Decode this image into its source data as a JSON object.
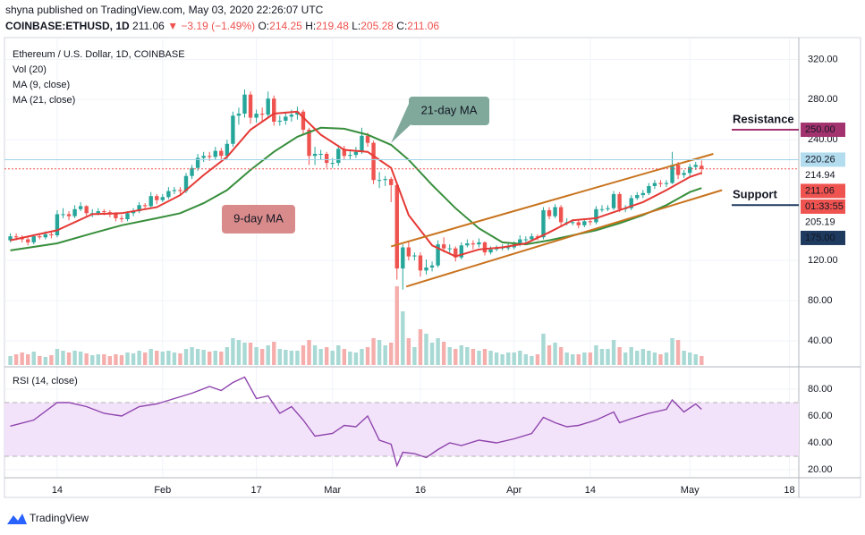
{
  "header": {
    "published": "shyna published on TradingView.com, May 03, 2020 22:26:07 UTC",
    "symbol": "COINBASE:ETHUSD, 1D",
    "last": "211.06",
    "change": "▼ −3.19 (−1.49%)",
    "ohlc": [
      {
        "key": "O:",
        "value": "214.25"
      },
      {
        "key": "H:",
        "value": "219.48"
      },
      {
        "key": "L:",
        "value": "205.28"
      },
      {
        "key": "C:",
        "value": "211.06"
      }
    ]
  },
  "footer": "TradingView",
  "chart_data": {
    "type": "candlestick",
    "legend": [
      "Ethereum / U.S. Dollar, 1D, COINBASE",
      "Vol (20)",
      "MA (9, close)",
      "MA (21, close)"
    ],
    "xlim": [
      -1,
      134.6
    ],
    "xticks": [
      {
        "value": 8,
        "label": "14"
      },
      {
        "value": 26,
        "label": "Feb"
      },
      {
        "value": 42,
        "label": "17"
      },
      {
        "value": 55,
        "label": "Mar"
      },
      {
        "value": 70,
        "label": "16"
      },
      {
        "value": 86,
        "label": "Apr"
      },
      {
        "value": 99,
        "label": "14"
      },
      {
        "value": 116,
        "label": "May"
      },
      {
        "value": 133,
        "label": "18"
      }
    ],
    "ylim": [
      16,
      339
    ],
    "yticks": [
      {
        "value": 40,
        "label": "40.00"
      },
      {
        "value": 80,
        "label": "80.00"
      },
      {
        "value": 120,
        "label": "120.00"
      },
      {
        "value": 240,
        "label": "240.00"
      },
      {
        "value": 280,
        "label": "280.00"
      },
      {
        "value": 320,
        "label": "320.00"
      }
    ],
    "colors": {
      "up": "#26a69a",
      "down": "#ef5350",
      "vol_up": "#a8d9d4",
      "vol_down": "#f5aeac"
    },
    "candles": {
      "open": [
        140,
        144,
        143,
        141,
        138,
        144,
        143,
        146,
        145,
        166,
        166,
        164,
        171,
        174,
        167,
        167,
        169,
        168,
        166,
        162,
        161,
        167,
        169,
        175,
        174,
        184,
        180,
        183,
        189,
        190,
        189,
        204,
        212,
        222,
        224,
        223,
        229,
        224,
        236,
        264,
        266,
        285,
        262,
        266,
        265,
        281,
        258,
        259,
        263,
        265,
        268,
        250,
        224,
        226,
        226,
        217,
        217,
        231,
        224,
        225,
        228,
        244,
        237,
        200,
        200,
        201,
        195,
        112,
        133,
        124,
        125,
        110,
        113,
        115,
        136,
        132,
        132,
        123,
        135,
        137,
        136,
        138,
        128,
        131,
        132,
        133,
        133,
        136,
        141,
        141,
        144,
        143,
        170,
        164,
        173,
        158,
        158,
        158,
        155,
        159,
        158,
        171,
        171,
        172,
        186,
        171,
        172,
        182,
        185,
        187,
        194,
        197,
        196,
        197,
        215,
        205,
        207,
        213,
        214.25
      ],
      "high": [
        147,
        147,
        145,
        143,
        146,
        147,
        149,
        148,
        170,
        172,
        169,
        175,
        178,
        175,
        171,
        172,
        171,
        170,
        168,
        165,
        169,
        172,
        178,
        177,
        188,
        186,
        186,
        193,
        193,
        193,
        207,
        215,
        226,
        228,
        228,
        233,
        232,
        240,
        268,
        272,
        290,
        288,
        270,
        272,
        288,
        284,
        264,
        268,
        270,
        273,
        270,
        252,
        233,
        230,
        228,
        222,
        235,
        234,
        229,
        233,
        252,
        247,
        239,
        208,
        204,
        203,
        196,
        136,
        139,
        128,
        128,
        121,
        119,
        140,
        143,
        136,
        134,
        138,
        141,
        140,
        142,
        139,
        134,
        135,
        136,
        137,
        139,
        145,
        144,
        147,
        146,
        173,
        173,
        176,
        175,
        162,
        161,
        160,
        162,
        161,
        174,
        175,
        175,
        189,
        188,
        175,
        185,
        188,
        190,
        197,
        200,
        200,
        200,
        228,
        218,
        210,
        216,
        218,
        219.48
      ],
      "low": [
        138,
        140,
        138,
        135,
        136,
        141,
        141,
        142,
        143,
        162,
        160,
        162,
        169,
        164,
        163,
        165,
        165,
        163,
        159,
        158,
        159,
        164,
        167,
        171,
        172,
        176,
        178,
        181,
        186,
        185,
        187,
        201,
        209,
        218,
        219,
        220,
        220,
        221,
        233,
        255,
        262,
        256,
        257,
        258,
        262,
        254,
        254,
        255,
        258,
        260,
        246,
        215,
        215,
        220,
        212,
        212,
        214,
        220,
        220,
        222,
        226,
        233,
        196,
        192,
        194,
        178,
        101,
        91,
        120,
        120,
        104,
        106,
        109,
        113,
        128,
        127,
        119,
        121,
        133,
        131,
        133,
        125,
        126,
        129,
        130,
        130,
        131,
        134,
        138,
        139,
        140,
        141,
        161,
        162,
        155,
        155,
        155,
        152,
        153,
        155,
        156,
        168,
        169,
        170,
        168,
        168,
        170,
        180,
        182,
        185,
        191,
        193,
        193,
        196,
        201,
        202,
        204,
        210,
        205.28
      ],
      "close": [
        144,
        143,
        141,
        138,
        144,
        143,
        146,
        145,
        166,
        166,
        164,
        171,
        174,
        167,
        167,
        169,
        168,
        166,
        162,
        161,
        167,
        169,
        175,
        174,
        184,
        180,
        183,
        189,
        190,
        189,
        204,
        212,
        222,
        224,
        223,
        229,
        224,
        236,
        264,
        266,
        285,
        262,
        266,
        265,
        281,
        258,
        259,
        263,
        265,
        268,
        250,
        224,
        226,
        226,
        217,
        217,
        231,
        224,
        225,
        228,
        244,
        237,
        200,
        200,
        201,
        195,
        112,
        133,
        124,
        125,
        110,
        113,
        115,
        136,
        132,
        132,
        123,
        135,
        137,
        136,
        138,
        128,
        131,
        132,
        133,
        133,
        136,
        141,
        141,
        144,
        143,
        170,
        164,
        173,
        158,
        158,
        158,
        155,
        159,
        158,
        171,
        171,
        172,
        186,
        171,
        172,
        182,
        185,
        187,
        194,
        197,
        196,
        197,
        215,
        205,
        207,
        213,
        215,
        211.06
      ]
    },
    "volume": {
      "vlim": [
        0,
        100
      ],
      "values": [
        10,
        12,
        14,
        12,
        15,
        10,
        9,
        11,
        18,
        16,
        14,
        16,
        15,
        13,
        11,
        12,
        12,
        10,
        12,
        11,
        14,
        13,
        16,
        14,
        18,
        16,
        15,
        16,
        14,
        13,
        18,
        20,
        18,
        17,
        15,
        16,
        15,
        20,
        30,
        28,
        25,
        25,
        20,
        18,
        22,
        26,
        18,
        17,
        16,
        16,
        22,
        28,
        22,
        18,
        20,
        16,
        22,
        18,
        15,
        14,
        18,
        20,
        30,
        28,
        22,
        25,
        88,
        60,
        30,
        20,
        40,
        35,
        25,
        30,
        26,
        20,
        18,
        22,
        20,
        18,
        16,
        18,
        16,
        14,
        12,
        14,
        14,
        16,
        12,
        10,
        12,
        35,
        22,
        25,
        20,
        14,
        12,
        12,
        14,
        14,
        22,
        18,
        18,
        28,
        20,
        14,
        20,
        16,
        18,
        16,
        14,
        12,
        14,
        30,
        28,
        16,
        14,
        12,
        10
      ]
    },
    "ma9": {
      "color": "#e53935",
      "x": [
        0,
        8,
        14,
        19,
        25,
        29,
        33,
        37,
        41,
        45,
        49,
        53,
        57,
        61,
        65,
        68,
        72,
        76,
        80,
        84,
        88,
        92,
        96,
        100,
        104,
        108,
        112,
        116,
        118
      ],
      "values": [
        140,
        150,
        166,
        167,
        173,
        185,
        205,
        223,
        250,
        266,
        268,
        245,
        230,
        228,
        212,
        165,
        135,
        124,
        131,
        133,
        137,
        148,
        160,
        162,
        170,
        178,
        190,
        203,
        207
      ]
    },
    "ma21": {
      "color": "#388e3c",
      "x": [
        0,
        8,
        14,
        19,
        25,
        29,
        33,
        37,
        41,
        45,
        49,
        53,
        57,
        61,
        65,
        68,
        72,
        76,
        80,
        84,
        88,
        92,
        96,
        100,
        104,
        108,
        112,
        116,
        118
      ],
      "values": [
        130,
        137,
        147,
        155,
        162,
        167,
        177,
        190,
        210,
        228,
        243,
        252,
        251,
        245,
        235,
        220,
        195,
        172,
        152,
        138,
        136,
        140,
        145,
        150,
        157,
        165,
        175,
        188,
        192
      ]
    },
    "trendlines": [
      {
        "color": "#c8731e",
        "x": [
          65,
          120
        ],
        "values": [
          134,
          226
        ]
      },
      {
        "color": "#c8731e",
        "x": [
          67.6,
          121.5
        ],
        "values": [
          94,
          190
        ]
      }
    ],
    "price_labels": [
      {
        "value": 250,
        "label": "250.00",
        "color": "#a3336f",
        "text_color": "#ffffff"
      },
      {
        "value": 220.26,
        "label": "220.26",
        "color": "#b3dcef",
        "text_color": "#131722",
        "line": "solid"
      },
      {
        "value": 214.94,
        "label": "214.94",
        "color": "#ffffff",
        "text_color": "#131722"
      },
      {
        "value": 211.06,
        "label": "211.06",
        "color": "#ef5350",
        "text_color": "#ffffff",
        "line": "dotted",
        "countdown": "01:33:55"
      },
      {
        "value": 205.19,
        "label": "205.19",
        "color": "#ffffff",
        "text_color": "#131722"
      },
      {
        "value": 175,
        "label": "175.00",
        "color": "#1e3a5f",
        "text_color": "#ffffff"
      }
    ],
    "annotations": {
      "resistance": {
        "text": "Resistance",
        "level": 250,
        "color": "#b71c1c",
        "line_color": "#a3336f"
      },
      "support": {
        "text": "Support",
        "level": 175,
        "color": "#2e7d32",
        "line_color": "#1e3a5f"
      },
      "ma21_callout": {
        "text": "21-day MA",
        "color": "#80a99c"
      },
      "ma9_callout": {
        "text": "9-day MA",
        "color": "#d98b8b"
      }
    },
    "rsi": {
      "title": "RSI (14, close)",
      "color": "#8e44ad",
      "ylim": [
        14.7,
        91.3
      ],
      "band": [
        30,
        70
      ],
      "yticks": [
        {
          "value": 20,
          "label": "20.00"
        },
        {
          "value": 40,
          "label": "40.00"
        },
        {
          "value": 60,
          "label": "60.00"
        },
        {
          "value": 80,
          "label": "80.00"
        }
      ],
      "x": [
        0,
        4,
        8,
        10,
        13,
        16,
        19,
        22,
        25,
        28,
        31,
        34,
        36,
        38,
        40,
        42,
        44,
        46,
        48,
        50,
        52,
        55,
        57,
        59,
        61,
        63,
        65,
        66,
        67,
        69,
        71,
        73,
        75,
        77,
        80,
        83,
        86,
        89,
        91,
        93,
        95,
        97,
        100,
        103,
        104,
        106,
        109,
        112,
        113,
        115,
        117,
        118
      ],
      "values": [
        52.5,
        57,
        70,
        70,
        67,
        62,
        60,
        67,
        69,
        73,
        77,
        82,
        79,
        85,
        89,
        73,
        75,
        62,
        67,
        57,
        45,
        47,
        53,
        52,
        60,
        42,
        39,
        23,
        33,
        32,
        29,
        35,
        40,
        38,
        42,
        40,
        43,
        47,
        59,
        55,
        52,
        53,
        57,
        63,
        55,
        58,
        62,
        65,
        72,
        63,
        69,
        65
      ]
    }
  }
}
